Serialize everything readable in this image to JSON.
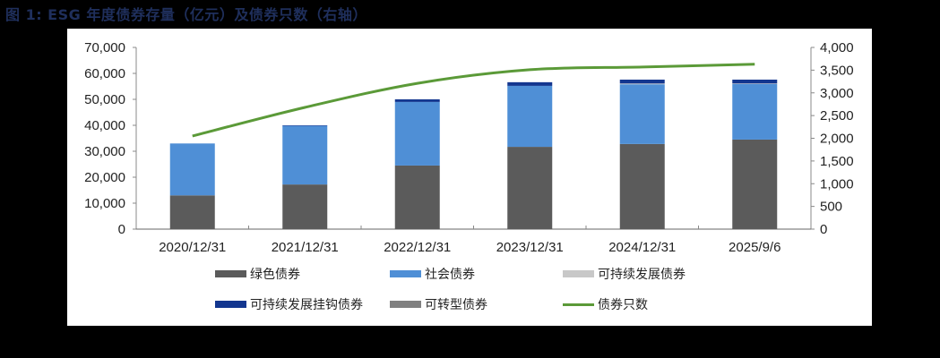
{
  "title": "图 1:  ESG 年度债券存量（亿元）及债券只数（右轴）",
  "colors": {
    "green_bond": "#5b5b5b",
    "social_bond": "#4f8fd6",
    "sustainability_bond": "#c8c8c8",
    "sustainability_linked_bond": "#13368f",
    "transition_bond": "#808080",
    "bond_count_line": "#5b9a38"
  },
  "left_axis": {
    "ticks": [
      "0",
      "10,000",
      "20,000",
      "30,000",
      "40,000",
      "50,000",
      "60,000",
      "70,000"
    ]
  },
  "right_axis": {
    "ticks": [
      "0",
      "500",
      "1,000",
      "1,500",
      "2,000",
      "2,500",
      "3,000",
      "3,500",
      "4,000"
    ]
  },
  "legend": [
    {
      "label": "绿色债券",
      "type": "bar",
      "color": "#5b5b5b"
    },
    {
      "label": "社会债券",
      "type": "bar",
      "color": "#4f8fd6"
    },
    {
      "label": "可持续发展债券",
      "type": "bar",
      "color": "#c8c8c8"
    },
    {
      "label": "可持续发展挂钩债券",
      "type": "bar",
      "color": "#13368f"
    },
    {
      "label": "可转型债券",
      "type": "bar",
      "color": "#808080"
    },
    {
      "label": "债券只数",
      "type": "line",
      "color": "#5b9a38"
    }
  ],
  "chart_data": {
    "type": "bar",
    "stacked": true,
    "title": "ESG 年度债券存量（亿元）及债券只数（右轴）",
    "xlabel": "",
    "ylabel": "亿元",
    "ylabel_right": "债券只数",
    "categories": [
      "2020/12/31",
      "2021/12/31",
      "2022/12/31",
      "2023/12/31",
      "2024/12/31",
      "2025/9/6"
    ],
    "ylim": [
      0,
      70000
    ],
    "ylim_right": [
      0,
      4000
    ],
    "grid": false,
    "legend_position": "bottom",
    "series": [
      {
        "name": "绿色债券",
        "type": "bar",
        "axis": "left",
        "values": [
          13000,
          17200,
          24500,
          31700,
          32800,
          34500
        ]
      },
      {
        "name": "社会债券",
        "type": "bar",
        "axis": "left",
        "values": [
          20000,
          22600,
          24500,
          23500,
          23000,
          21400
        ]
      },
      {
        "name": "可持续发展债券",
        "type": "bar",
        "axis": "left",
        "values": [
          0,
          0,
          0,
          0,
          300,
          200
        ]
      },
      {
        "name": "可持续发展挂钩债券",
        "type": "bar",
        "axis": "left",
        "values": [
          0,
          200,
          1000,
          1400,
          1500,
          1500
        ]
      },
      {
        "name": "可转型债券",
        "type": "bar",
        "axis": "left",
        "values": [
          0,
          0,
          0,
          0,
          0,
          0
        ]
      },
      {
        "name": "债券只数",
        "type": "line",
        "axis": "right",
        "values": [
          2050,
          2680,
          3210,
          3510,
          3570,
          3630
        ]
      }
    ]
  }
}
